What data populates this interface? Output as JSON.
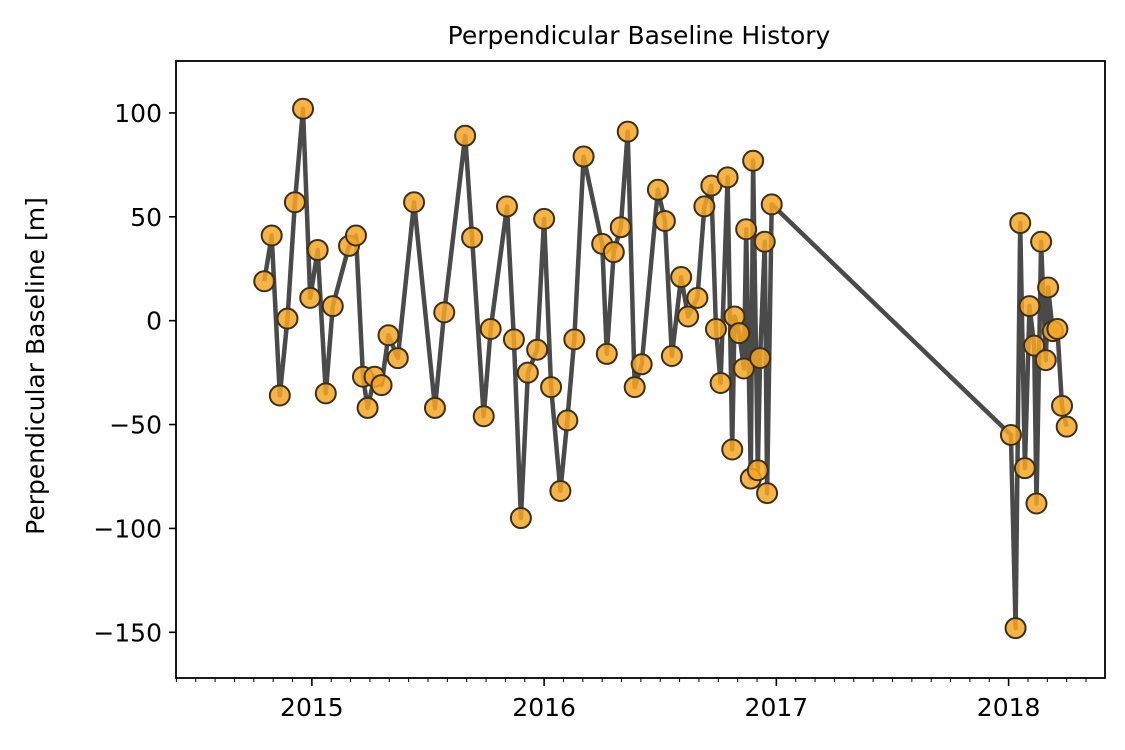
{
  "chart_data": {
    "type": "line",
    "title": "Perpendicular Baseline History",
    "xlabel": "",
    "ylabel": "Perpendicular Baseline [m]",
    "xlim": [
      2014.415,
      2018.415
    ],
    "ylim": [
      -172,
      125
    ],
    "x_ticks": [
      2015,
      2016,
      2017,
      2018
    ],
    "x_tick_labels": [
      "2015",
      "2016",
      "2017",
      "2018"
    ],
    "y_ticks": [
      100,
      50,
      0,
      -50,
      -100,
      -150
    ],
    "y_tick_labels": [
      "100",
      "50",
      "0",
      "−50",
      "−100",
      "−150"
    ],
    "grid": false,
    "line_color": "#4a4a4a",
    "marker_face": "#f6a623",
    "marker_edge": "#3a3020",
    "series": [
      {
        "x": [
          2014.795,
          2014.827,
          2014.862,
          2014.895,
          2014.927,
          2014.962,
          2014.993,
          2015.025,
          2015.06,
          2015.09,
          2015.16,
          2015.19,
          2015.22,
          2015.24,
          2015.27,
          2015.3,
          2015.33,
          2015.37,
          2015.44,
          2015.53,
          2015.57,
          2015.66,
          2015.69,
          2015.74,
          2015.77,
          2015.84,
          2015.87,
          2015.9,
          2015.93,
          2015.97,
          2016.0,
          2016.03,
          2016.07,
          2016.1,
          2016.13,
          2016.17,
          2016.25,
          2016.27,
          2016.3,
          2016.33,
          2016.36,
          2016.39,
          2016.42,
          2016.49,
          2016.52,
          2016.55,
          2016.59,
          2016.62,
          2016.66,
          2016.69,
          2016.72,
          2016.74,
          2016.76,
          2016.79,
          2016.81,
          2016.82,
          2016.84,
          2016.86,
          2016.87,
          2016.89,
          2016.9,
          2016.92,
          2016.93,
          2016.95,
          2016.96,
          2016.98,
          2018.01,
          2018.03,
          2018.05,
          2018.07,
          2018.09,
          2018.11,
          2018.12,
          2018.14,
          2018.16,
          2018.17,
          2018.19,
          2018.21,
          2018.23,
          2018.25
        ],
        "y": [
          19,
          41,
          -36,
          1,
          57,
          102,
          11,
          34,
          -35,
          7,
          36,
          41,
          -27,
          -42,
          -27,
          -31,
          -7,
          -18,
          57,
          -42,
          4,
          89,
          40,
          -46,
          -4,
          55,
          -9,
          -95,
          -25,
          -14,
          49,
          -32,
          -82,
          -48,
          -9,
          79,
          37,
          -16,
          33,
          45,
          91,
          -32,
          -21,
          63,
          48,
          -17,
          21,
          2,
          11,
          55,
          65,
          -4,
          -30,
          69,
          -62,
          2,
          -6,
          -23,
          44,
          -76,
          77,
          -72,
          -18,
          38,
          -83,
          56,
          -55,
          -148,
          47,
          -71,
          7,
          -12,
          -88,
          38,
          -19,
          16,
          -5,
          -4,
          -41,
          -51
        ]
      }
    ]
  }
}
